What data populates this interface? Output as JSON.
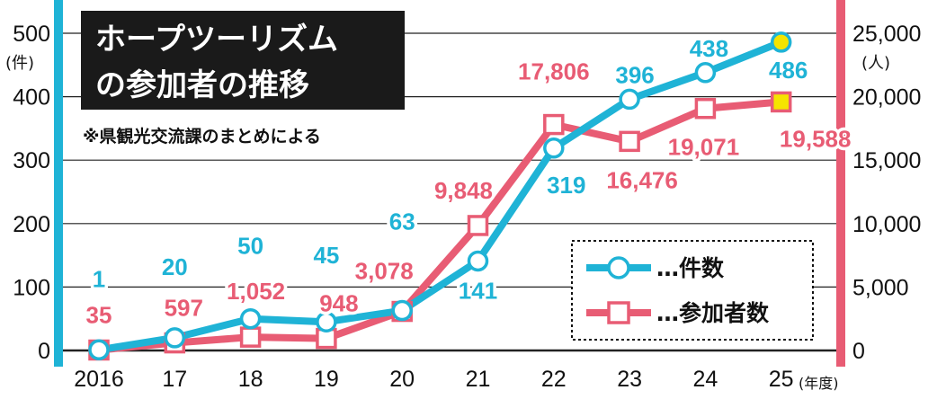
{
  "chart_data": {
    "type": "line",
    "title": "ホープツーリズムの参加者の推移",
    "note": "※県観光交流課のまとめによる",
    "categories": [
      "2016",
      "17",
      "18",
      "19",
      "20",
      "21",
      "22",
      "23",
      "24",
      "25"
    ],
    "x_unit": "(年度)",
    "left_axis": {
      "unit": "(件)",
      "ticks": [
        "0",
        "100",
        "200",
        "300",
        "400",
        "500"
      ],
      "range": [
        0,
        500
      ],
      "color": "#1fb3d6"
    },
    "right_axis": {
      "unit": "(人)",
      "ticks": [
        "0",
        "5,000",
        "10,000",
        "15,000",
        "20,000",
        "25,000"
      ],
      "range": [
        0,
        25000
      ],
      "color": "#e85c74"
    },
    "grid": true,
    "legend_position": "bottom-right",
    "series": [
      {
        "name": "…件数",
        "axis": "left",
        "marker": "circle",
        "color": "#1fb3d6",
        "values": [
          1,
          20,
          50,
          45,
          63,
          141,
          319,
          396,
          438,
          486
        ],
        "labels": [
          "1",
          "20",
          "50",
          "45",
          "63",
          "141",
          "319",
          "396",
          "438",
          "486"
        ]
      },
      {
        "name": "…参加者数",
        "axis": "right",
        "marker": "square",
        "color": "#e85c74",
        "values": [
          35,
          597,
          1052,
          948,
          3078,
          9848,
          17806,
          16476,
          19071,
          19588
        ],
        "labels": [
          "35",
          "597",
          "1,052",
          "948",
          "3,078",
          "9,848",
          "17,806",
          "16,476",
          "19,071",
          "19,588"
        ]
      }
    ],
    "highlight_color": "#f5e400"
  }
}
